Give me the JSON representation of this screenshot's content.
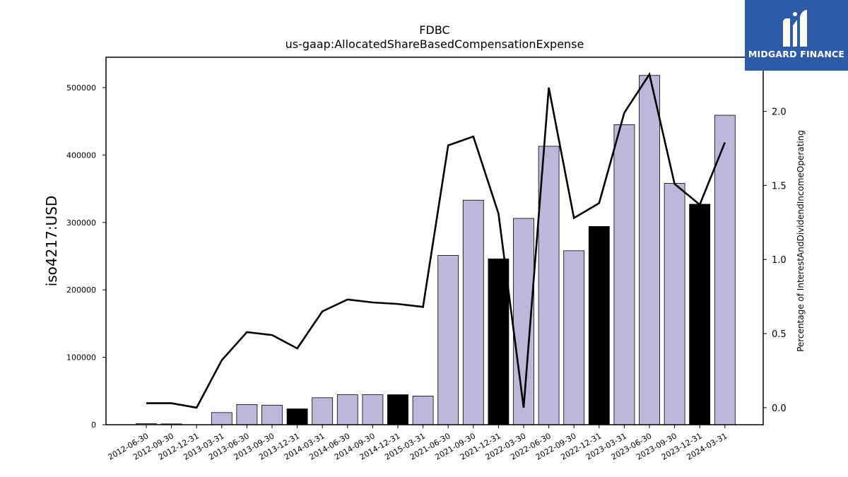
{
  "brand": {
    "name": "MIDGARD FINANCE",
    "bg_color": "#2e5ba6"
  },
  "chart_data": {
    "type": "bar",
    "title": "FDBC",
    "subtitle": "us-gaap:AllocatedShareBasedCompensationExpense",
    "ylabel": "iso4217:USD",
    "y2label": "Percentage of InterestAndDividendIncomeOperating",
    "ylim": [
      0,
      545000
    ],
    "y2lim": [
      -0.115,
      2.365
    ],
    "yticks": [
      0,
      100000,
      200000,
      300000,
      400000,
      500000
    ],
    "y2ticks": [
      0.0,
      0.5,
      1.0,
      1.5,
      2.0
    ],
    "y2tick_labels": [
      "0.0",
      "0.5",
      "1.0",
      "1.5",
      "2.0"
    ],
    "categories": [
      "2012-06-30",
      "2012-09-30",
      "2012-12-31",
      "2013-03-31",
      "2013-06-30",
      "2013-09-30",
      "2013-12-31",
      "2014-03-31",
      "2014-06-30",
      "2014-09-30",
      "2014-12-31",
      "2015-03-31",
      "2021-06-30",
      "2021-09-30",
      "2021-12-31",
      "2022-03-30",
      "2022-06-30",
      "2022-09-30",
      "2022-12-31",
      "2023-03-31",
      "2023-06-30",
      "2023-09-30",
      "2023-12-31",
      "2024-03-31"
    ],
    "series": [
      {
        "values": [
          1500,
          1200,
          0,
          18000,
          30000,
          29000,
          23500,
          40000,
          44500,
          44500,
          44500,
          42500,
          251000,
          333000,
          246000,
          306000,
          413000,
          258000,
          294000,
          445000,
          518000,
          358000,
          327000,
          459000
        ],
        "highlight": [
          false,
          false,
          false,
          false,
          false,
          false,
          true,
          false,
          false,
          false,
          true,
          false,
          false,
          false,
          true,
          false,
          false,
          false,
          true,
          false,
          false,
          false,
          true,
          false
        ],
        "color": "#bcb8d9",
        "highlight_color": "#000000"
      },
      {
        "type": "line",
        "axis": "right",
        "color": "#000000",
        "values": [
          0.03,
          0.03,
          0.0,
          0.32,
          0.51,
          0.49,
          0.4,
          0.65,
          0.73,
          0.71,
          0.7,
          0.68,
          1.77,
          1.83,
          1.31,
          0.0,
          2.16,
          1.28,
          1.38,
          1.99,
          2.25,
          1.51,
          1.37,
          1.79
        ]
      }
    ],
    "grid": false,
    "legend": "none"
  }
}
